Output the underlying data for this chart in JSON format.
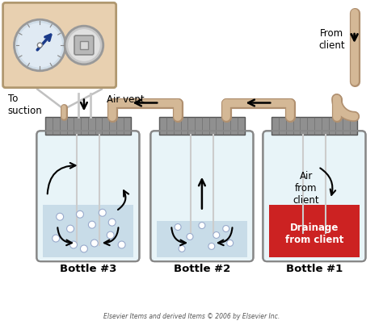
{
  "bg_color": "#ffffff",
  "bottle_body_color": "#e8f4f8",
  "bottle_outline_color": "#888888",
  "bottle_fill_color": "#c8dce8",
  "cap_color": "#909090",
  "cap_stripe_color": "#777777",
  "tube_color": "#d4b896",
  "tube_outline": "#b09070",
  "drainage_fill": "#cc2222",
  "drainage_outline": "#aa1111",
  "bubble_color": "#ffffff",
  "bubble_edge": "#aabbcc",
  "arrow_color": "#111111",
  "gauge_bg": "#e8d0b0",
  "gauge_border": "#b09870",
  "gauge1_face": "#c8d8e8",
  "gauge1_needle": "#1a3a8a",
  "gauge2_face": "#d8d8d8",
  "bottle1_label": "Bottle #1",
  "bottle2_label": "Bottle #2",
  "bottle3_label": "Bottle #3",
  "label_drainage": "Drainage\nfrom client",
  "label_air_client": "Air\nfrom\nclient",
  "label_suction": "To\nsuction",
  "label_airvent": "Air vent",
  "label_fromclient": "From\nclient",
  "footer": "Elsevier Items and derived Items © 2006 by Elsevier Inc.",
  "lbl_fontsize": 8.5,
  "small_fontsize": 5.5,
  "bold_fontsize": 9.5
}
